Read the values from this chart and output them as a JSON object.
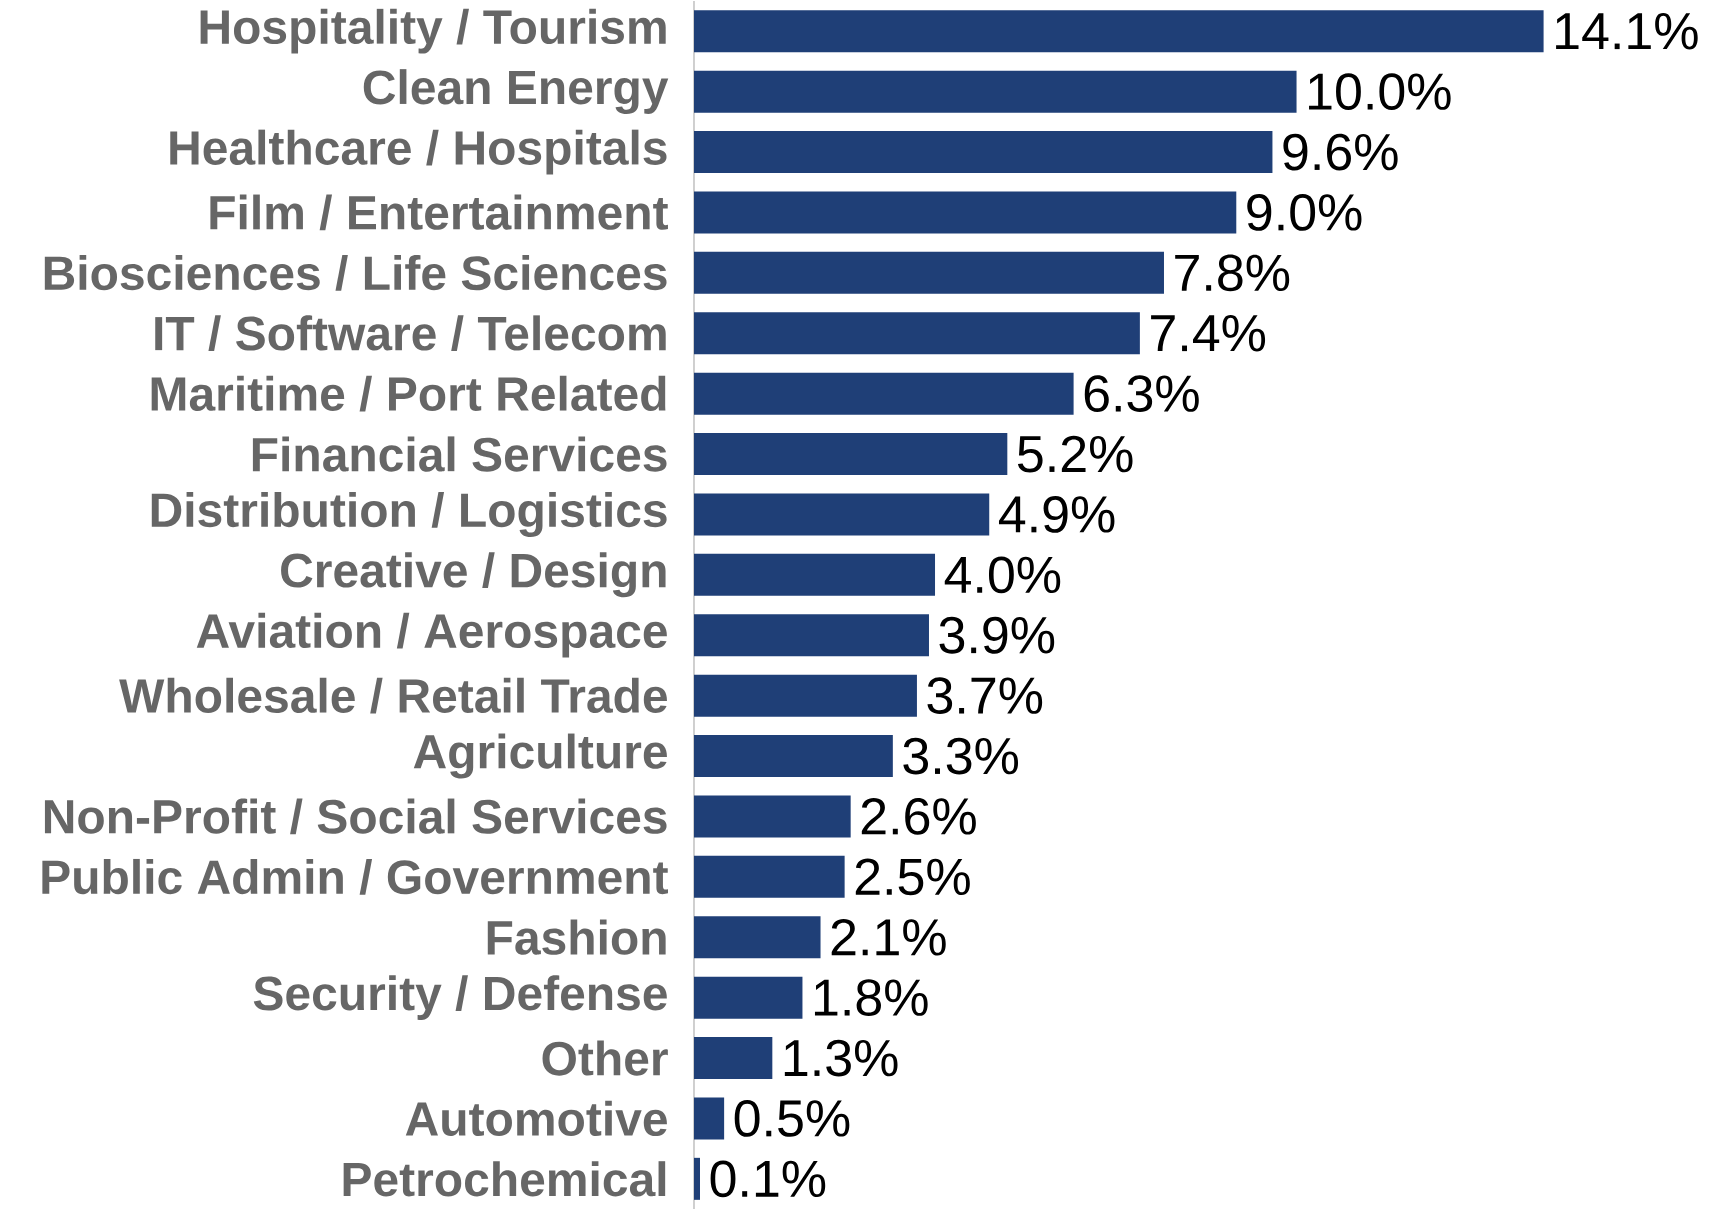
{
  "chart_data": {
    "type": "bar",
    "orientation": "horizontal",
    "color": "#1f3f77",
    "categories": [
      "Hospitality / Tourism",
      "Clean Energy",
      "Healthcare / Hospitals",
      "Film / Entertainment",
      "Biosciences / Life Sciences",
      "IT / Software / Telecom",
      "Maritime / Port Related",
      "Financial Services",
      "Distribution / Logistics",
      "Creative / Design",
      "Aviation / Aerospace",
      "Wholesale / Retail Trade",
      "Agriculture",
      "Non-Profit / Social Services",
      "Public Admin / Government",
      "Fashion",
      "Security / Defense",
      "Other",
      "Automotive",
      "Petrochemical"
    ],
    "values": [
      14.1,
      10.0,
      9.6,
      9.0,
      7.8,
      7.4,
      6.3,
      5.2,
      4.9,
      4.0,
      3.9,
      3.7,
      3.3,
      2.6,
      2.5,
      2.1,
      1.8,
      1.3,
      0.5,
      0.1
    ],
    "value_labels": [
      "14.1%",
      "10.0%",
      "9.6%",
      "9.0%",
      "7.8%",
      "7.4%",
      "6.3%",
      "5.2%",
      "4.9%",
      "4.0%",
      "3.9%",
      "3.7%",
      "3.3%",
      "2.6%",
      "2.5%",
      "2.1%",
      "1.8%",
      "1.3%",
      "0.5%",
      "0.1%"
    ],
    "grid": false
  }
}
